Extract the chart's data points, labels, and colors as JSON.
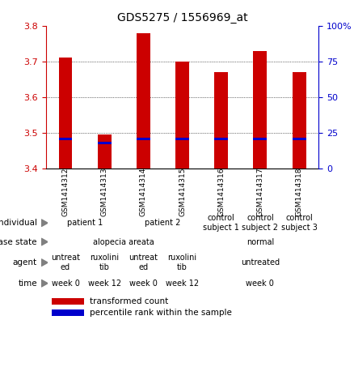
{
  "title": "GDS5275 / 1556969_at",
  "samples": [
    "GSM1414312",
    "GSM1414313",
    "GSM1414314",
    "GSM1414315",
    "GSM1414316",
    "GSM1414317",
    "GSM1414318"
  ],
  "red_values": [
    3.71,
    3.495,
    3.78,
    3.7,
    3.67,
    3.73,
    3.67
  ],
  "blue_values": [
    3.483,
    3.472,
    3.483,
    3.483,
    3.483,
    3.484,
    3.484
  ],
  "ylim_left": [
    3.4,
    3.8
  ],
  "yticks_left": [
    3.4,
    3.5,
    3.6,
    3.7,
    3.8
  ],
  "yticks_right": [
    0,
    25,
    50,
    75,
    100
  ],
  "bar_bottom": 3.4,
  "bar_width": 0.35,
  "individual_colors": [
    "#ccffcc",
    "#66cc66",
    "#66cc66",
    "#66cc66"
  ],
  "disease_colors": [
    "#8899cc",
    "#99bbee"
  ],
  "agent_colors_alt": [
    "#ffccff",
    "#ee88ee"
  ],
  "time_colors_alt": [
    "#ffddaa",
    "#ddaa66"
  ],
  "sample_bg_color": "#cccccc",
  "red_color": "#cc0000",
  "blue_color": "#0000cc",
  "legend_red": "transformed count",
  "legend_blue": "percentile rank within the sample"
}
